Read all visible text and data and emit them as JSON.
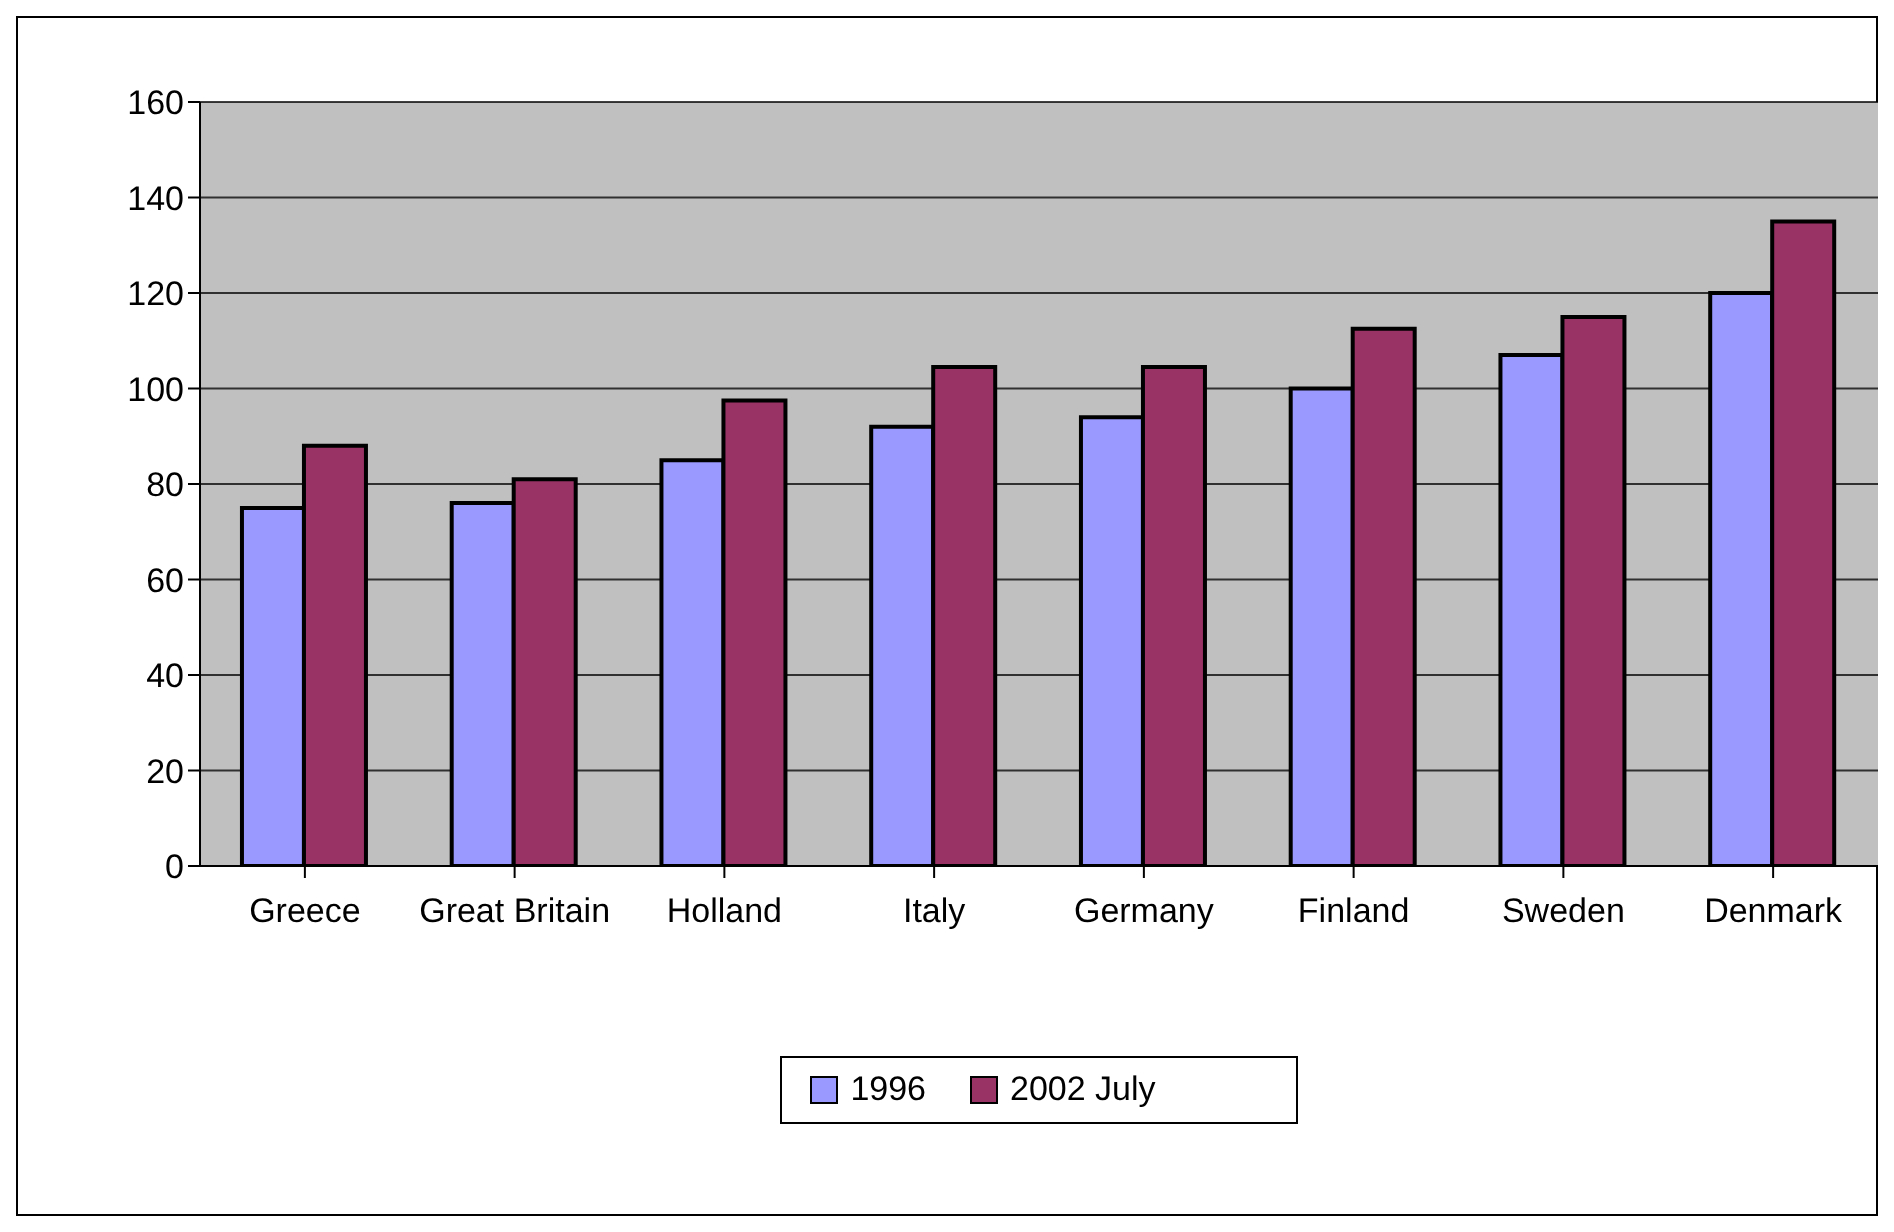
{
  "chart_data": {
    "type": "bar",
    "categories": [
      "Greece",
      "Great Britain",
      "Holland",
      "Italy",
      "Germany",
      "Finland",
      "Sweden",
      "Denmark"
    ],
    "series": [
      {
        "name": "1996",
        "color": "#9999ff",
        "values": [
          75,
          76,
          85,
          92,
          94,
          100,
          107,
          120
        ]
      },
      {
        "name": "2002 July",
        "color": "#993366",
        "values": [
          88,
          81,
          97.5,
          104.5,
          104.5,
          112.5,
          115,
          135
        ]
      }
    ],
    "ylim": [
      0,
      160
    ],
    "yticks": [
      0,
      20,
      40,
      60,
      80,
      100,
      120,
      140,
      160
    ],
    "grid": "y",
    "legend": "bottom"
  }
}
